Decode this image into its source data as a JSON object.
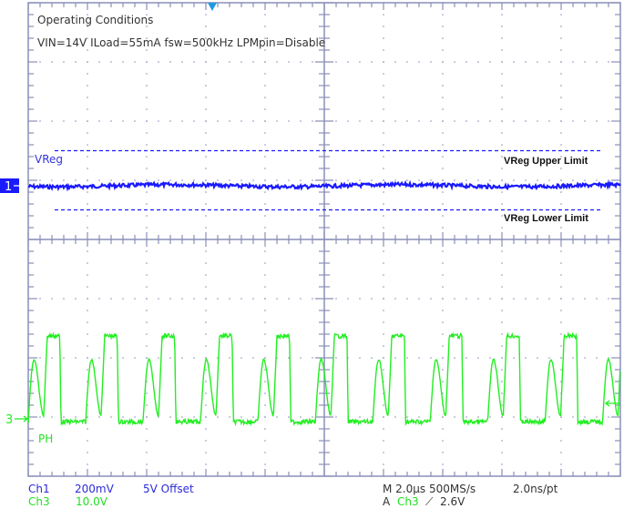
{
  "chart_data": {
    "type": "line",
    "title": "Operating Conditions",
    "subtitle": "VIN=14V ILoad=55mA fsw=500kHz LPMpin=Disable",
    "grid": {
      "on": true,
      "h_divisions": 10,
      "v_divisions": 8
    },
    "x": {
      "label": "Time",
      "per_div": "2.0µs",
      "range_us": [
        0,
        20
      ]
    },
    "series": [
      {
        "name": "VReg",
        "channel": "Ch1",
        "color": "#1a1aff",
        "scale": "200mV/div",
        "offset": "5V Offset",
        "shape": "flat DC with small ripple",
        "level_div_from_top": 3.0,
        "upper_limit_div_from_top": 2.5,
        "lower_limit_div_from_top": 3.5
      },
      {
        "name": "PH",
        "channel": "Ch3",
        "color": "#22ee22",
        "scale": "10.0V/div",
        "shape": "switching node, ~500kHz, high plateau then low with resonant ringing bump",
        "period_us": 1.94,
        "high_level_div_above_ground": 1.4,
        "ring_peak_div_above_ground": 1.0,
        "ring_valley_div_above_ground": 0.05,
        "low_level_div_above_ground": -0.05
      }
    ],
    "annotations": [
      "VReg",
      "VReg Upper Limit",
      "VReg Lower Limit",
      "PH"
    ]
  },
  "title_text": {
    "line1": "Operating Conditions",
    "line2": "VIN=14V ILoad=55mA fsw=500kHz LPMpin=Disable"
  },
  "labels": {
    "vreg": "VReg",
    "upper": "VReg Upper Limit",
    "lower": "VReg Lower Limit",
    "ph": "PH",
    "ch1_marker": "1",
    "ch3_marker": "3"
  },
  "readouts": {
    "ch1_name": "Ch1",
    "ch1_scale": "200mV",
    "ch1_offset": "5V Offset",
    "ch3_name": "Ch3",
    "ch3_scale": "10.0V",
    "timebase": "M 2.0µs 500MS/s",
    "resolution": "2.0ns/pt",
    "trigger_prefix": "A",
    "trigger_source": "Ch3",
    "trigger_slope": "⟋",
    "trigger_level": "2.6V"
  },
  "colors": {
    "grid": "#8a8fb8",
    "ch1": "#1a1aff",
    "ch3": "#22ee22",
    "trigger_marker": "#1e9be0"
  }
}
